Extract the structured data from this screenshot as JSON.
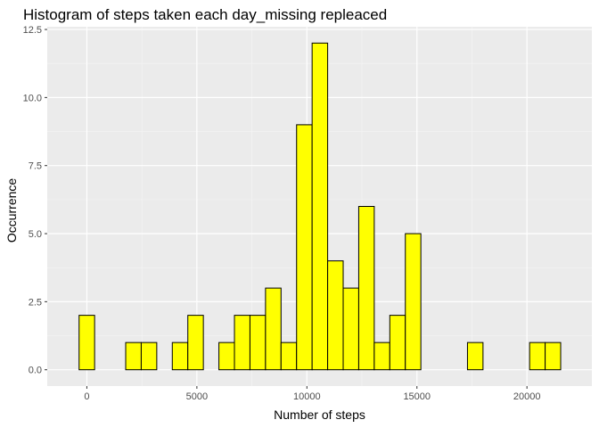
{
  "chart_data": {
    "type": "bar",
    "title": "Histogram of steps taken each day_missing repleaced",
    "xlabel": "Number of steps",
    "ylabel": "Occurrence",
    "bin_width": 706,
    "bin_centers": [
      0,
      706,
      1412,
      2118,
      2824,
      3530,
      4236,
      4942,
      5648,
      6354,
      7060,
      7766,
      8472,
      9178,
      9884,
      10590,
      11296,
      12002,
      12708,
      13414,
      14120,
      14826,
      15532,
      16238,
      16944,
      17650,
      18356,
      19062,
      19768,
      20474,
      21180
    ],
    "values": [
      2,
      0,
      0,
      1,
      1,
      0,
      1,
      2,
      0,
      1,
      2,
      2,
      3,
      1,
      9,
      12,
      4,
      3,
      6,
      1,
      2,
      5,
      0,
      0,
      0,
      1,
      0,
      0,
      0,
      1,
      1
    ],
    "xlim": [
      -1800,
      22950
    ],
    "ylim": [
      -0.6,
      12.6
    ],
    "x_ticks": [
      0,
      5000,
      10000,
      15000,
      20000
    ],
    "y_ticks": [
      0,
      2.5,
      5,
      7.5,
      10,
      12.5
    ],
    "x_tick_labels": [
      "0",
      "5000",
      "10000",
      "15000",
      "20000"
    ],
    "y_tick_labels": [
      "0.0",
      "2.5",
      "5.0",
      "7.5",
      "10.0",
      "12.5"
    ],
    "grid": true,
    "legend": "none",
    "colors": {
      "bar_fill": "#FFFF00",
      "bar_stroke": "#000000",
      "panel_bg": "#EBEBEB",
      "grid_major": "#FFFFFF",
      "grid_minor": "#F5F5F5",
      "tick_label": "#4D4D4D"
    }
  }
}
